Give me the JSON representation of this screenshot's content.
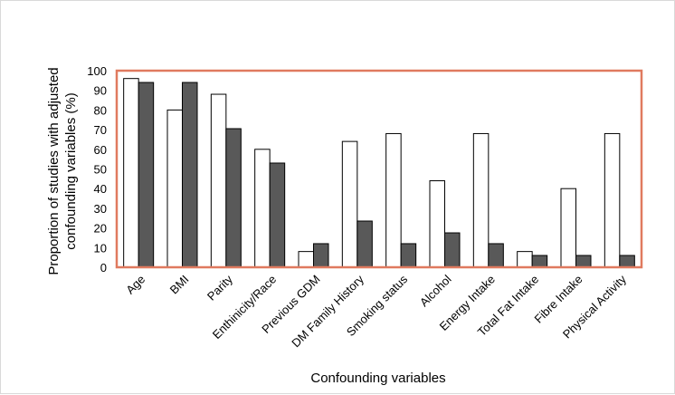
{
  "chart_data": {
    "type": "bar",
    "title": "",
    "xlabel": "Confounding variables",
    "ylabel": "Proportion of studies with adjusted confounding variables (%)",
    "ylabel_lines": [
      "Proportion of studies with adjusted",
      "confounding variables (%)"
    ],
    "ylim": [
      0,
      100
    ],
    "yticks": [
      0,
      10,
      20,
      30,
      40,
      50,
      60,
      70,
      80,
      90,
      100
    ],
    "grid": false,
    "legend": "none",
    "categories": [
      "Age",
      "BMI",
      "Parity",
      "Enthinicity/Race",
      "Previous GDM",
      "DM Family History",
      "Smoking status",
      "Alcohol",
      "Energy Intake",
      "Total Fat Intake",
      "Fibre Intake",
      "Physical Activity"
    ],
    "series": [
      {
        "values": [
          96,
          80,
          88,
          60,
          8,
          64,
          68,
          44,
          68,
          8,
          40,
          68
        ],
        "color": "#ffffff"
      },
      {
        "values": [
          94,
          94,
          70.5,
          53,
          12,
          23.5,
          12,
          17.5,
          12,
          6,
          6,
          6
        ],
        "color": "#595959"
      }
    ],
    "colors": {
      "plot_border": "#e07a5f",
      "bar_stroke": "#000000"
    }
  }
}
